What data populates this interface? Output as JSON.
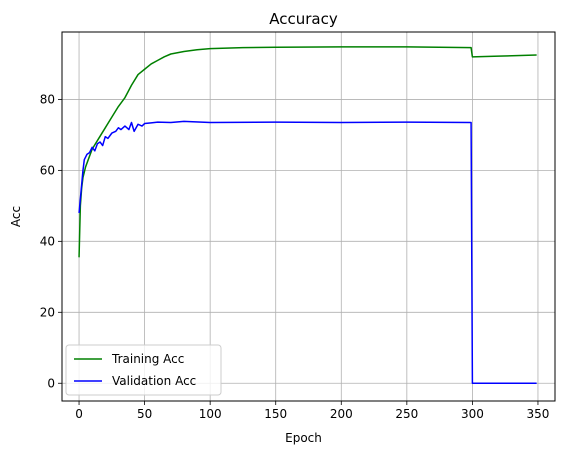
{
  "chart_data": {
    "type": "line",
    "title": "Accuracy",
    "xlabel": "Epoch",
    "ylabel": "Acc",
    "xlim": [
      -13,
      363
    ],
    "ylim": [
      -5,
      99
    ],
    "xticks": [
      0,
      50,
      100,
      150,
      200,
      250,
      300,
      350
    ],
    "yticks": [
      0,
      20,
      40,
      60,
      80
    ],
    "grid": true,
    "legend_position": "lower-left",
    "series": [
      {
        "name": "Training Acc",
        "color": "#008000",
        "points": [
          [
            0,
            35.5
          ],
          [
            1,
            50
          ],
          [
            2,
            55
          ],
          [
            3,
            58
          ],
          [
            5,
            61
          ],
          [
            8,
            64
          ],
          [
            10,
            66
          ],
          [
            15,
            69
          ],
          [
            20,
            72
          ],
          [
            25,
            75
          ],
          [
            30,
            78
          ],
          [
            35,
            80.5
          ],
          [
            40,
            84
          ],
          [
            45,
            87
          ],
          [
            50,
            88.5
          ],
          [
            55,
            90
          ],
          [
            60,
            91
          ],
          [
            65,
            92
          ],
          [
            70,
            92.8
          ],
          [
            80,
            93.5
          ],
          [
            90,
            94
          ],
          [
            100,
            94.3
          ],
          [
            125,
            94.6
          ],
          [
            150,
            94.7
          ],
          [
            200,
            94.8
          ],
          [
            250,
            94.8
          ],
          [
            299,
            94.6
          ],
          [
            300,
            92
          ],
          [
            320,
            92.2
          ],
          [
            349,
            92.5
          ]
        ]
      },
      {
        "name": "Validation Acc",
        "color": "#0000ff",
        "points": [
          [
            0,
            48
          ],
          [
            1,
            52
          ],
          [
            2,
            56
          ],
          [
            3,
            60
          ],
          [
            4,
            63
          ],
          [
            6,
            64.5
          ],
          [
            8,
            65
          ],
          [
            10,
            66.5
          ],
          [
            12,
            65.5
          ],
          [
            14,
            67.5
          ],
          [
            16,
            68
          ],
          [
            18,
            67
          ],
          [
            20,
            69.5
          ],
          [
            22,
            69
          ],
          [
            25,
            70.5
          ],
          [
            28,
            71
          ],
          [
            30,
            72
          ],
          [
            32,
            71.5
          ],
          [
            35,
            72.5
          ],
          [
            38,
            71.5
          ],
          [
            40,
            73.5
          ],
          [
            42,
            71
          ],
          [
            45,
            73
          ],
          [
            48,
            72.5
          ],
          [
            50,
            73.2
          ],
          [
            55,
            73.4
          ],
          [
            60,
            73.6
          ],
          [
            70,
            73.5
          ],
          [
            80,
            73.8
          ],
          [
            100,
            73.5
          ],
          [
            150,
            73.6
          ],
          [
            200,
            73.5
          ],
          [
            250,
            73.6
          ],
          [
            299,
            73.5
          ],
          [
            300,
            0
          ],
          [
            349,
            0
          ]
        ]
      }
    ]
  }
}
